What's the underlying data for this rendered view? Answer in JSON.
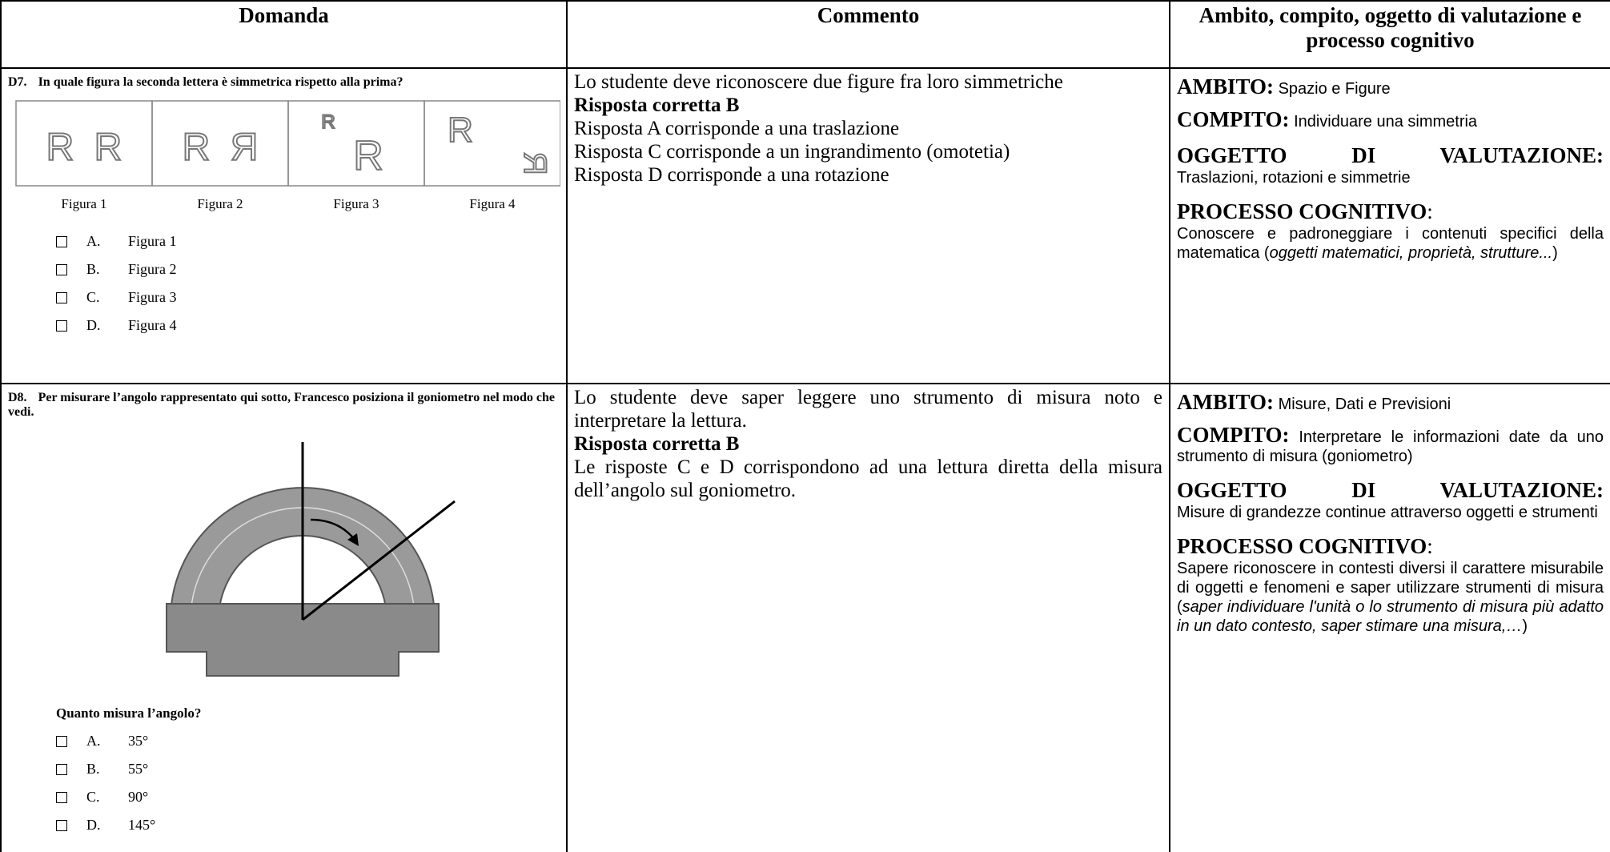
{
  "header": [
    "Domanda",
    "Commento",
    "Ambito, compito, oggetto di valutazione e processo cognitivo"
  ],
  "rows": [
    {
      "question": {
        "number": "D7.",
        "text": "In quale figura la seconda lettera è simmetrica rispetto alla prima?",
        "figures": [
          {
            "letters": [
              "R",
              "R"
            ],
            "label": "Figura 1"
          },
          {
            "letters": [
              "R",
              "R"
            ],
            "label": "Figura 2"
          },
          {
            "letters": [
              "R",
              "R"
            ],
            "label": "Figura 3"
          },
          {
            "letters": [
              "R",
              "R"
            ],
            "label": "Figura 4"
          }
        ],
        "options": [
          {
            "letter": "A.",
            "text": "Figura 1"
          },
          {
            "letter": "B.",
            "text": "Figura 2"
          },
          {
            "letter": "C.",
            "text": "Figura 3"
          },
          {
            "letter": "D.",
            "text": "Figura 4"
          }
        ]
      },
      "comment": {
        "intro": "Lo studente deve riconoscere due figure fra loro simmetriche",
        "answer": "Risposta corretta B",
        "notes": [
          "Risposta A corrisponde a una traslazione",
          "Risposta C corrisponde a un ingrandimento (omotetia)",
          "Risposta D corrisponde a una rotazione"
        ]
      },
      "evaluation": [
        {
          "label": "AMBITO:",
          "parts": [
            {
              "text": "Spazio e Figure"
            }
          ]
        },
        {
          "label": "COMPITO:",
          "parts": [
            {
              "text": "Individuare una simmetria"
            }
          ]
        },
        {
          "label": "OGGETTO DI VALUTAZIONE:",
          "block": true,
          "parts": [
            {
              "text": "Traslazioni, rotazioni e simmetrie"
            }
          ]
        },
        {
          "label": "PROCESSO COGNITIVO",
          "suffix": ":",
          "block": true,
          "parts": [
            {
              "text": "Conoscere e padroneggiare i contenuti specifici della matematica ("
            },
            {
              "text": "oggetti matematici, proprietà, strutture...",
              "italic": true
            },
            {
              "text": ")"
            }
          ]
        }
      ]
    },
    {
      "question": {
        "number": "D8.",
        "text": "Per misurare l’angolo rappresentato qui sotto, Francesco posiziona il goniometro nel modo che vedi.",
        "prompt": "Quanto misura l’angolo?",
        "options": [
          {
            "letter": "A.",
            "text": "35°"
          },
          {
            "letter": "B.",
            "text": "55°"
          },
          {
            "letter": "C.",
            "text": "90°"
          },
          {
            "letter": "D.",
            "text": "145°"
          }
        ]
      },
      "comment": {
        "intro": "Lo studente deve saper leggere uno strumento di misura noto e interpretare la lettura.",
        "answer": "Risposta corretta B",
        "notes": [
          "Le risposte C e D corrispondono ad una lettura diretta della misura dell’angolo sul goniometro."
        ]
      },
      "evaluation": [
        {
          "label": "AMBITO:",
          "parts": [
            {
              "text": "Misure, Dati e Previsioni"
            }
          ]
        },
        {
          "label": "COMPITO:",
          "parts": [
            {
              "text": "Interpretare le informazioni date da uno strumento di misura (goniometro)"
            }
          ]
        },
        {
          "label": "OGGETTO DI VALUTAZIONE:",
          "block": true,
          "parts": [
            {
              "text": "Misure di grandezze continue attraverso oggetti e strumenti"
            }
          ]
        },
        {
          "label": "PROCESSO COGNITIVO",
          "suffix": ":",
          "block": true,
          "parts": [
            {
              "text": "Sapere riconoscere in contesti diversi il carattere misurabile di oggetti e fenomeni e saper utilizzare strumenti di misura ("
            },
            {
              "text": "saper individuare l'unità o lo strumento di misura più adatto in un dato contesto, saper stimare una misura,…",
              "italic": true
            },
            {
              "text": ")"
            }
          ]
        }
      ]
    }
  ]
}
